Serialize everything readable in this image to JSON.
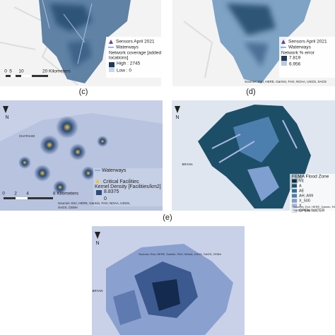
{
  "labels": [
    "(c)",
    "(d)",
    "(e)"
  ],
  "panels": {
    "a": {
      "legend": {
        "sensors": "Sensors April 2021",
        "waterways": "Waterways",
        "title_lines": [
          "Network coverage [added",
          "locations]"
        ],
        "high": "High : 2745",
        "low": "Low : 0"
      },
      "scale": [
        "0",
        "5",
        "10",
        "20 Kilometers"
      ]
    },
    "b": {
      "legend": {
        "sensors": "Sensors April 2021",
        "waterways": "Waterways",
        "title": "Network % error",
        "high": "7.819",
        "low": "6.956"
      },
      "sources": "Sources: Esri, HERE, Garmin, FAO, NOAA, USGS, SAGS"
    },
    "c": {
      "north": "N",
      "place": "CHATHAM",
      "legend": {
        "waterways": "Waterways",
        "facilities": "Critical Facilities",
        "title": "Kernel Density [Facilities/km2]",
        "high": "8.8375",
        "low": "0"
      },
      "scale": [
        "0",
        "2",
        "4",
        "8 Kilometers"
      ],
      "sources": [
        "Sources: Esri, HERE, Garmin, FAO, NOAA, USGS,",
        "SAGS, CEMA"
      ]
    },
    "d": {
      "north": "N",
      "place": "BRYAN",
      "legend": {
        "title": "FEMA Flood Zone",
        "items": [
          {
            "label": "VE",
            "color": "#0b2e3f"
          },
          {
            "label": "A",
            "color": "#1d4e68"
          },
          {
            "label": "AE",
            "color": "#2f6f8f"
          },
          {
            "label": "AH; A99",
            "color": "#4d7fae"
          },
          {
            "label": "X_500",
            "color": "#7f9fd0"
          },
          {
            "label": "X",
            "color": "#aab9e2"
          },
          {
            "label": "OPEN WATER",
            "color": "#e6f4fb"
          }
        ]
      },
      "sources": [
        "Sources: Esri, HERE, Garmin, FAO, NOAA, USGS,",
        "SAGS, FEMA"
      ]
    },
    "e": {
      "north": "N",
      "place": "BRYAN",
      "sources": "Sources: Esri, HERE, Garmin, FAO, NOAA, USGS, SAGS, CEMA"
    }
  }
}
